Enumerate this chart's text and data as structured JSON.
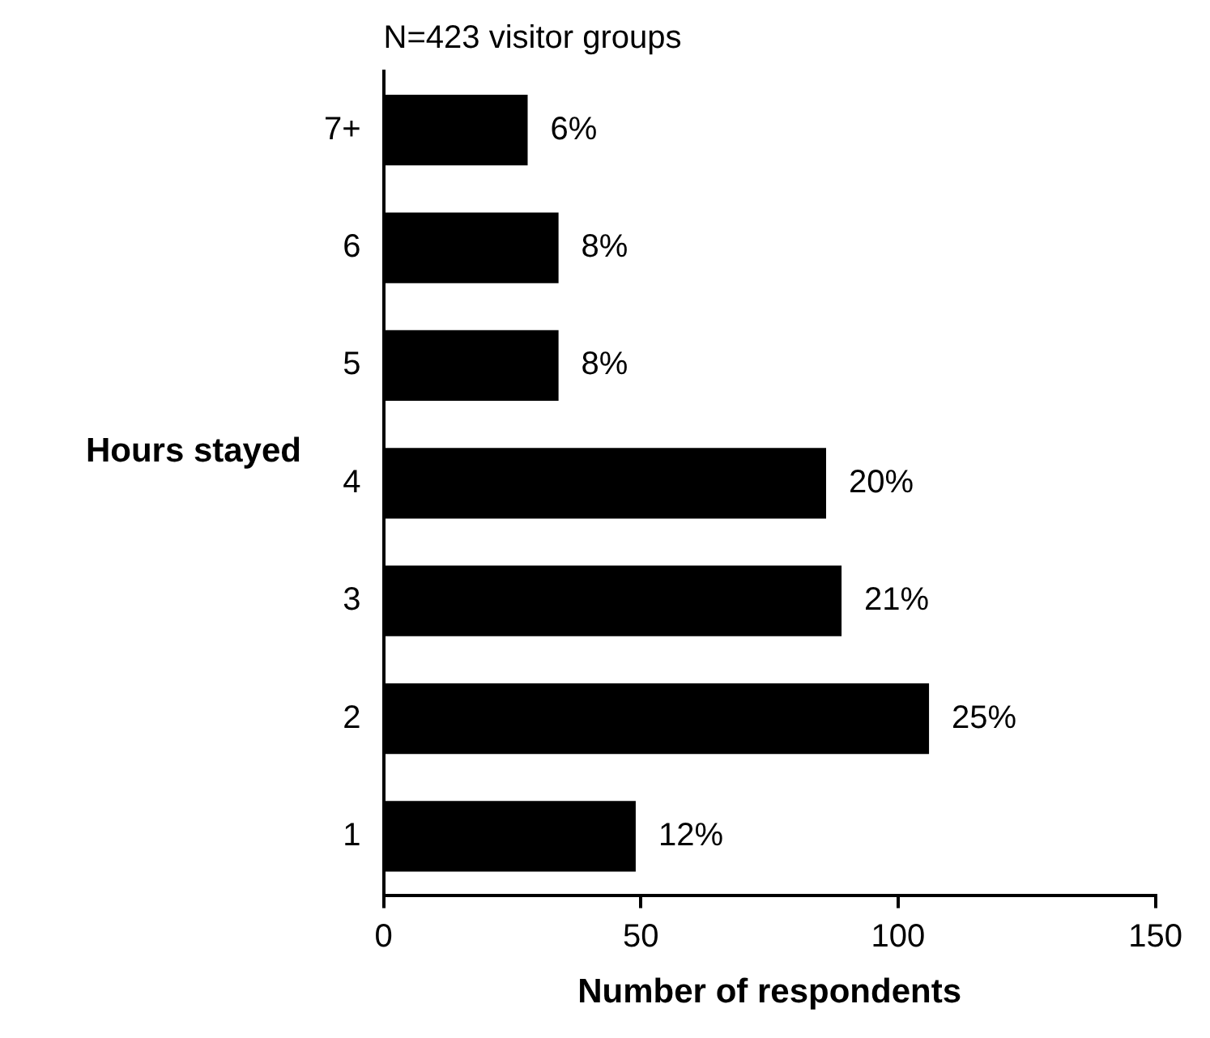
{
  "chart_data": {
    "type": "bar",
    "orientation": "horizontal",
    "title": "N=423 visitor groups",
    "xlabel": "Number of respondents",
    "ylabel": "Hours stayed",
    "categories": [
      "7+",
      "6",
      "5",
      "4",
      "3",
      "2",
      "1"
    ],
    "values": [
      28,
      34,
      34,
      86,
      89,
      106,
      49
    ],
    "annotations": [
      {
        "text": "6%",
        "x": 28,
        "y": "7+"
      },
      {
        "text": "8%",
        "x": 34,
        "y": "6"
      },
      {
        "text": "8%",
        "x": 34,
        "y": "5"
      },
      {
        "text": "20%",
        "x": 86,
        "y": "4"
      },
      {
        "text": "21%",
        "x": 89,
        "y": "3"
      },
      {
        "text": "25%",
        "x": 106,
        "y": "2"
      },
      {
        "text": "12%",
        "x": 49,
        "y": "1"
      }
    ],
    "color": "#000000",
    "xlim": [
      0,
      150
    ],
    "xticks": [
      0,
      50,
      100,
      150
    ]
  }
}
